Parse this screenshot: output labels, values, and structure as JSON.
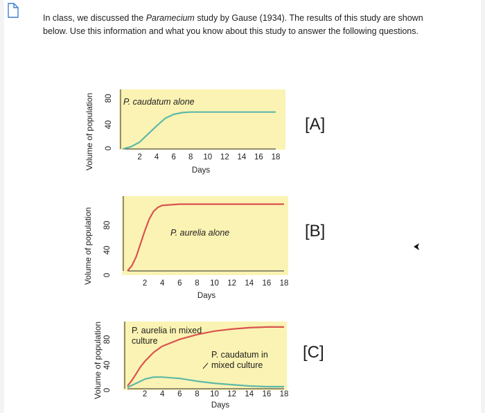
{
  "intro": {
    "part1": "In class, we discussed the ",
    "italic": "Paramecium",
    "part2": " study by Gause (1934). The results of this study are shown below. Use this information and what you know about this study to answer the following questions."
  },
  "chart_data": [
    {
      "type": "line",
      "label": "[A]",
      "panel_text": "P. caudatum alone",
      "xlabel": "Days",
      "ylabel": "Volume of population",
      "x_ticks": [
        2,
        4,
        6,
        8,
        10,
        12,
        14,
        16,
        18
      ],
      "y_ticks": [
        0,
        40,
        80
      ],
      "xlim": [
        0,
        18
      ],
      "ylim": [
        0,
        90
      ],
      "grid": false,
      "series": [
        {
          "color": "#5cb8a8",
          "x": [
            0,
            1,
            2,
            3,
            4,
            5,
            6,
            7,
            8,
            10,
            12,
            14,
            16,
            18
          ],
          "y": [
            0,
            4,
            12,
            26,
            40,
            53,
            60,
            63,
            64,
            64,
            64,
            64,
            64,
            64
          ]
        }
      ]
    },
    {
      "type": "line",
      "label": "[B]",
      "panel_text": "P. aurelia alone",
      "xlabel": "Days",
      "ylabel": "Volume of population",
      "x_ticks": [
        2,
        4,
        6,
        8,
        10,
        12,
        14,
        16,
        18
      ],
      "y_ticks": [
        0,
        40,
        80
      ],
      "xlim": [
        0,
        18
      ],
      "ylim": [
        0,
        110
      ],
      "grid": false,
      "series": [
        {
          "color": "#d9534f",
          "x": [
            0,
            0.5,
            1,
            1.5,
            2,
            2.5,
            3,
            3.5,
            4,
            5,
            6,
            8,
            10,
            12,
            14,
            16,
            18
          ],
          "y": [
            0,
            8,
            22,
            42,
            62,
            80,
            92,
            98,
            101,
            102,
            103,
            103,
            103,
            103,
            103,
            103,
            103
          ]
        }
      ]
    },
    {
      "type": "line",
      "label": "[C]",
      "xlabel": "Days",
      "ylabel": "Volume of population",
      "x_ticks": [
        2,
        4,
        6,
        8,
        10,
        12,
        14,
        16,
        18
      ],
      "y_ticks": [
        0,
        40,
        80
      ],
      "xlim": [
        0,
        18
      ],
      "ylim": [
        0,
        100
      ],
      "grid": false,
      "series": [
        {
          "name": "P. aurelia in mixed culture",
          "color": "#d9534f",
          "x": [
            0,
            0.5,
            1,
            1.5,
            2,
            3,
            4,
            6,
            8,
            10,
            12,
            14,
            16,
            18
          ],
          "y": [
            4,
            12,
            22,
            32,
            40,
            53,
            62,
            72,
            79,
            84,
            87,
            89,
            90,
            90
          ]
        },
        {
          "name": "P. caudatum in mixed culture",
          "color": "#5cb8a8",
          "x": [
            0,
            1,
            2,
            3,
            4,
            5,
            6,
            7,
            8,
            10,
            12,
            14,
            16,
            18
          ],
          "y": [
            2,
            8,
            14,
            17,
            17,
            16,
            15,
            13,
            11,
            8,
            6,
            4,
            3,
            3
          ]
        }
      ]
    }
  ],
  "theme": {
    "panel_fill": "#fbf3b3",
    "axis_color": "#2a2a2a",
    "text_color": "#1e1e1e"
  }
}
